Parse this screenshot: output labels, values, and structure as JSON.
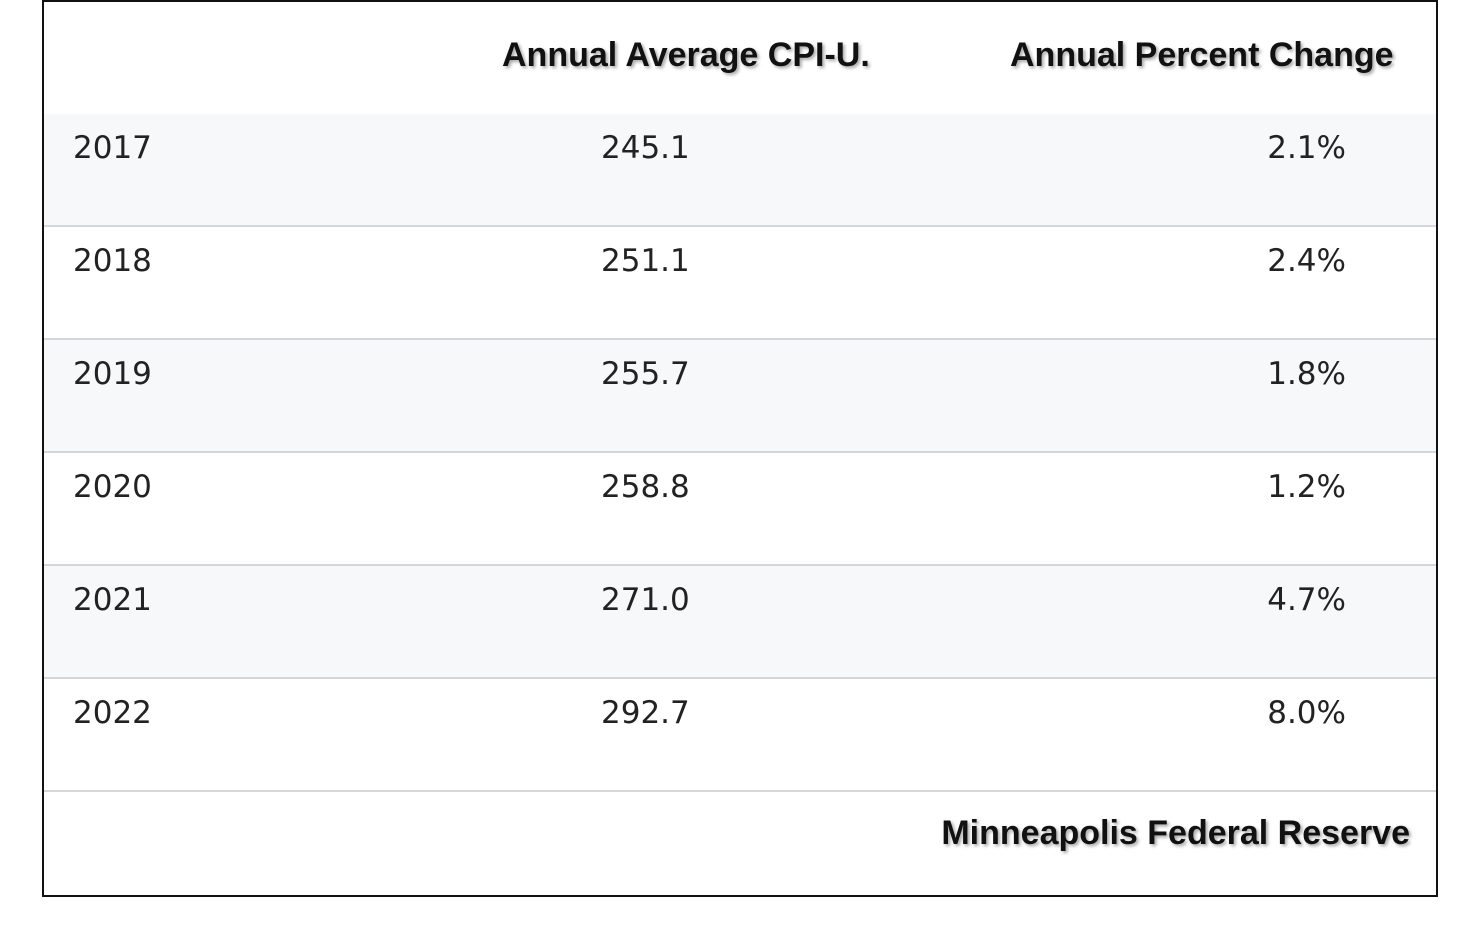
{
  "chart_data": {
    "type": "table",
    "columns": [
      "",
      "Annual Average CPI-U.",
      "Annual Percent Change"
    ],
    "rows": [
      {
        "year": "2017",
        "cpi": "245.1",
        "pct": "2.1%"
      },
      {
        "year": "2018",
        "cpi": "251.1",
        "pct": "2.4%"
      },
      {
        "year": "2019",
        "cpi": "255.7",
        "pct": "1.8%"
      },
      {
        "year": "2020",
        "cpi": "258.8",
        "pct": "1.2%"
      },
      {
        "year": "2021",
        "cpi": "271.0",
        "pct": "4.7%"
      },
      {
        "year": "2022",
        "cpi": "292.7",
        "pct": "8.0%"
      }
    ],
    "source": "Minneapolis Federal Reserve"
  },
  "colors": {
    "shaded_row": "#f7f8fa",
    "divider": "#d3d6da",
    "text": "#222222"
  }
}
